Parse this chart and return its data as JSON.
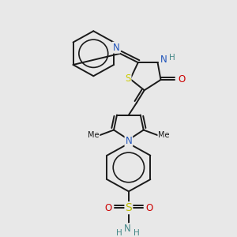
{
  "bg_color": "#e8e8e8",
  "bond_color": "#1a1a1a",
  "bond_width": 1.4,
  "figsize": [
    3.0,
    3.0
  ],
  "dpi": 100,
  "colors": {
    "S": "#cccc00",
    "N": "#2255bb",
    "O": "#cc0000",
    "H": "#448888",
    "C": "#1a1a1a"
  }
}
